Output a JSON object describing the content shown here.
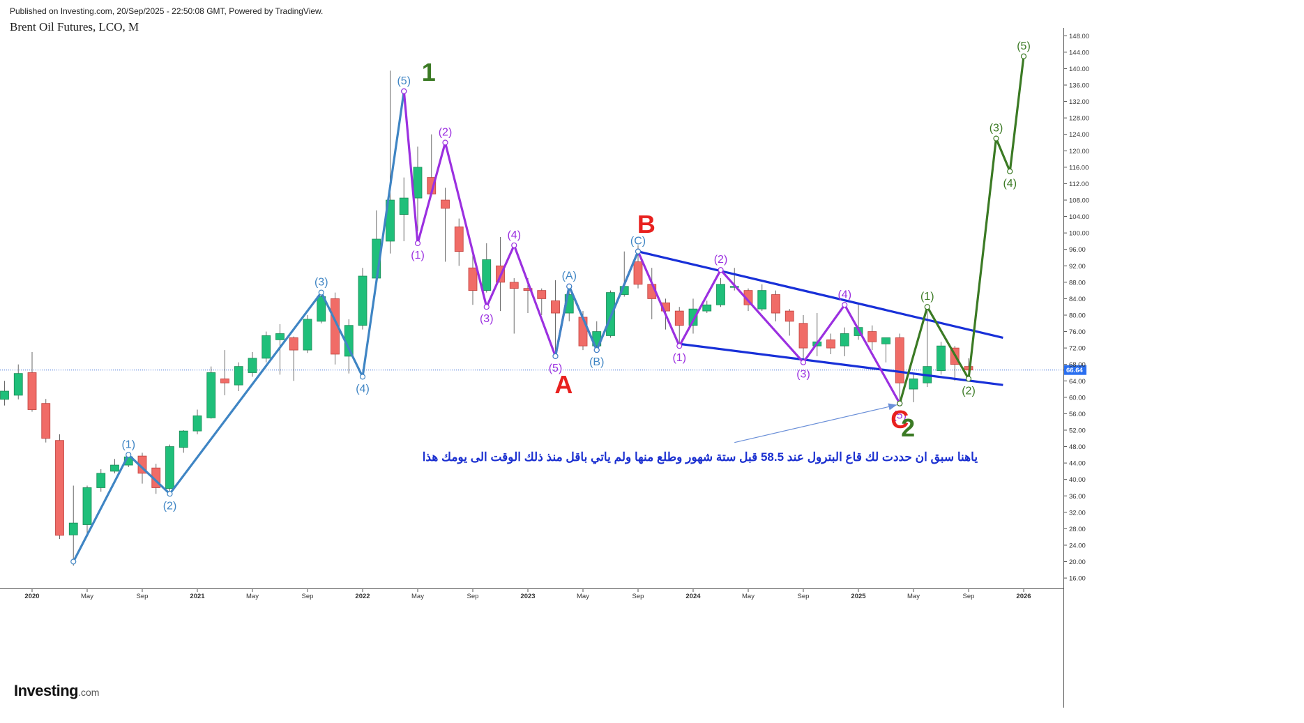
{
  "header": {
    "published": "Published on Investing.com, 20/Sep/2025 - 22:50:08 GMT, Powered by TradingView.",
    "title": "Brent Oil Futures, LCO, M"
  },
  "logo": {
    "brand": "Investing",
    "domain": ".com"
  },
  "colors": {
    "up": "#26a36a",
    "up_fill": "#1fbf7a",
    "down": "#e0504c",
    "down_fill": "#f06c67",
    "wave_blue": "#3f85c4",
    "wave_purple": "#9b30e0",
    "wave_green": "#3b7a24",
    "channel": "#1830d8",
    "label_red": "#e8211f",
    "arrow": "#6a8fd8",
    "note": "#1a2fd0",
    "last_price_bg": "#2a6ff0"
  },
  "chart_data": {
    "type": "candlestick",
    "symbol": "Brent Oil Futures, LCO, M",
    "interval": "monthly",
    "ylim": [
      13,
      149
    ],
    "y_ticks": [
      "148.00",
      "144.00",
      "140.00",
      "136.00",
      "132.00",
      "128.00",
      "124.00",
      "120.00",
      "116.00",
      "112.00",
      "108.00",
      "104.00",
      "100.00",
      "96.00",
      "92.00",
      "88.00",
      "84.00",
      "80.00",
      "76.00",
      "72.00",
      "68.00",
      "64.00",
      "60.00",
      "56.00",
      "52.00",
      "48.00",
      "44.00",
      "40.00",
      "36.00",
      "32.00",
      "28.00",
      "24.00",
      "20.00",
      "16.00"
    ],
    "x_ticks": [
      {
        "label": "2020",
        "month": 0,
        "bold": true
      },
      {
        "label": "May",
        "month": 4
      },
      {
        "label": "Sep",
        "month": 8
      },
      {
        "label": "2021",
        "month": 12,
        "bold": true
      },
      {
        "label": "May",
        "month": 16
      },
      {
        "label": "Sep",
        "month": 20
      },
      {
        "label": "2022",
        "month": 24,
        "bold": true
      },
      {
        "label": "May",
        "month": 28
      },
      {
        "label": "Sep",
        "month": 32
      },
      {
        "label": "2023",
        "month": 36,
        "bold": true
      },
      {
        "label": "May",
        "month": 40
      },
      {
        "label": "Sep",
        "month": 44
      },
      {
        "label": "2024",
        "month": 48,
        "bold": true
      },
      {
        "label": "May",
        "month": 52
      },
      {
        "label": "Sep",
        "month": 56
      },
      {
        "label": "2025",
        "month": 60,
        "bold": true
      },
      {
        "label": "May",
        "month": 64
      },
      {
        "label": "Sep",
        "month": 68
      },
      {
        "label": "2026",
        "month": 72,
        "bold": true
      }
    ],
    "last_price": 66.64,
    "last_price_label": "66.64",
    "candles": [
      {
        "m": -2,
        "o": 59.5,
        "h": 64,
        "l": 58,
        "c": 61.5
      },
      {
        "m": -1,
        "o": 60.5,
        "h": 68,
        "l": 59.5,
        "c": 65.8
      },
      {
        "m": 0,
        "o": 66,
        "h": 71,
        "l": 56.5,
        "c": 57
      },
      {
        "m": 1,
        "o": 58.5,
        "h": 59.6,
        "l": 49,
        "c": 50
      },
      {
        "m": 2,
        "o": 49.5,
        "h": 51,
        "l": 25.5,
        "c": 26.4
      },
      {
        "m": 3,
        "o": 26.5,
        "h": 38.5,
        "l": 19,
        "c": 29.4
      },
      {
        "m": 4,
        "o": 29,
        "h": 38.5,
        "l": 26,
        "c": 38
      },
      {
        "m": 5,
        "o": 38,
        "h": 42.5,
        "l": 37,
        "c": 41.5
      },
      {
        "m": 6,
        "o": 42,
        "h": 45,
        "l": 41.5,
        "c": 43.5
      },
      {
        "m": 7,
        "o": 43.5,
        "h": 46,
        "l": 43,
        "c": 45.5
      },
      {
        "m": 8,
        "o": 45.7,
        "h": 46.5,
        "l": 39,
        "c": 41.5
      },
      {
        "m": 9,
        "o": 42.8,
        "h": 43.8,
        "l": 36.5,
        "c": 38
      },
      {
        "m": 10,
        "o": 37.8,
        "h": 48.5,
        "l": 37,
        "c": 48
      },
      {
        "m": 11,
        "o": 47.8,
        "h": 52,
        "l": 46.5,
        "c": 51.8
      },
      {
        "m": 12,
        "o": 51.8,
        "h": 57,
        "l": 51,
        "c": 55.5
      },
      {
        "m": 13,
        "o": 55,
        "h": 67.5,
        "l": 54.8,
        "c": 66
      },
      {
        "m": 14,
        "o": 64.5,
        "h": 71.5,
        "l": 60.5,
        "c": 63.5
      },
      {
        "m": 15,
        "o": 63,
        "h": 68.5,
        "l": 61.5,
        "c": 67.5
      },
      {
        "m": 16,
        "o": 66,
        "h": 71,
        "l": 65,
        "c": 69.5
      },
      {
        "m": 17,
        "o": 69.5,
        "h": 76,
        "l": 68.5,
        "c": 75
      },
      {
        "m": 18,
        "o": 74,
        "h": 77.8,
        "l": 65.5,
        "c": 75.5
      },
      {
        "m": 19,
        "o": 74.5,
        "h": 74.8,
        "l": 64,
        "c": 71.5
      },
      {
        "m": 20,
        "o": 71.5,
        "h": 80,
        "l": 70.8,
        "c": 79
      },
      {
        "m": 21,
        "o": 78.5,
        "h": 86,
        "l": 78,
        "c": 84.5
      },
      {
        "m": 22,
        "o": 84,
        "h": 85.5,
        "l": 68,
        "c": 70.5
      },
      {
        "m": 23,
        "o": 70,
        "h": 79,
        "l": 65.8,
        "c": 77.5
      },
      {
        "m": 24,
        "o": 77.5,
        "h": 91.5,
        "l": 76.5,
        "c": 89.5
      },
      {
        "m": 25,
        "o": 89,
        "h": 105.5,
        "l": 88,
        "c": 98.5
      },
      {
        "m": 26,
        "o": 98,
        "h": 139.5,
        "l": 95,
        "c": 108
      },
      {
        "m": 27,
        "o": 104.5,
        "h": 113.5,
        "l": 98,
        "c": 108.5
      },
      {
        "m": 28,
        "o": 108.5,
        "h": 121,
        "l": 100.5,
        "c": 116
      },
      {
        "m": 29,
        "o": 113.5,
        "h": 124,
        "l": 109,
        "c": 109.5
      },
      {
        "m": 30,
        "o": 108,
        "h": 111,
        "l": 93,
        "c": 106
      },
      {
        "m": 31,
        "o": 101.5,
        "h": 103.5,
        "l": 92,
        "c": 95.5
      },
      {
        "m": 32,
        "o": 91.5,
        "h": 95.5,
        "l": 82.5,
        "c": 86
      },
      {
        "m": 33,
        "o": 86,
        "h": 97.5,
        "l": 85.5,
        "c": 93.5
      },
      {
        "m": 34,
        "o": 92,
        "h": 99,
        "l": 81,
        "c": 88
      },
      {
        "m": 35,
        "o": 88,
        "h": 89,
        "l": 75.5,
        "c": 86.5
      },
      {
        "m": 36,
        "o": 86.5,
        "h": 89,
        "l": 80.5,
        "c": 86
      },
      {
        "m": 37,
        "o": 86,
        "h": 86.5,
        "l": 80,
        "c": 84
      },
      {
        "m": 38,
        "o": 83.5,
        "h": 88.5,
        "l": 70,
        "c": 80.5
      },
      {
        "m": 39,
        "o": 80.5,
        "h": 87.5,
        "l": 78.5,
        "c": 85
      },
      {
        "m": 40,
        "o": 79.5,
        "h": 81,
        "l": 71.5,
        "c": 72.5
      },
      {
        "m": 41,
        "o": 72.5,
        "h": 78.5,
        "l": 71.5,
        "c": 76
      },
      {
        "m": 42,
        "o": 75,
        "h": 86,
        "l": 74.5,
        "c": 85.5
      },
      {
        "m": 43,
        "o": 85,
        "h": 95.5,
        "l": 84.5,
        "c": 87
      },
      {
        "m": 44,
        "o": 93,
        "h": 97,
        "l": 86.5,
        "c": 87.5
      },
      {
        "m": 45,
        "o": 87.5,
        "h": 91.5,
        "l": 79,
        "c": 84
      },
      {
        "m": 46,
        "o": 83,
        "h": 84,
        "l": 76.5,
        "c": 81
      },
      {
        "m": 47,
        "o": 81,
        "h": 82,
        "l": 73,
        "c": 77.5
      },
      {
        "m": 48,
        "o": 77.5,
        "h": 84,
        "l": 75.5,
        "c": 81.5
      },
      {
        "m": 49,
        "o": 81,
        "h": 83.5,
        "l": 80.5,
        "c": 82.5
      },
      {
        "m": 50,
        "o": 82.5,
        "h": 89,
        "l": 82,
        "c": 87.5
      },
      {
        "m": 51,
        "o": 87,
        "h": 91.5,
        "l": 86,
        "c": 87
      },
      {
        "m": 52,
        "o": 86,
        "h": 86.5,
        "l": 81,
        "c": 82.5
      },
      {
        "m": 53,
        "o": 81.5,
        "h": 87.5,
        "l": 81,
        "c": 86
      },
      {
        "m": 54,
        "o": 85,
        "h": 86,
        "l": 78.5,
        "c": 80.5
      },
      {
        "m": 55,
        "o": 81,
        "h": 81.5,
        "l": 75,
        "c": 78.5
      },
      {
        "m": 56,
        "o": 78,
        "h": 80,
        "l": 68.5,
        "c": 72
      },
      {
        "m": 57,
        "o": 72.5,
        "h": 80.5,
        "l": 70,
        "c": 73.5
      },
      {
        "m": 58,
        "o": 74,
        "h": 75.5,
        "l": 70.5,
        "c": 72
      },
      {
        "m": 59,
        "o": 72.5,
        "h": 77,
        "l": 70,
        "c": 75.5
      },
      {
        "m": 60,
        "o": 75,
        "h": 82.5,
        "l": 74,
        "c": 77
      },
      {
        "m": 61,
        "o": 76,
        "h": 77.5,
        "l": 71.5,
        "c": 73.5
      },
      {
        "m": 62,
        "o": 73,
        "h": 74.5,
        "l": 68.5,
        "c": 74.5
      },
      {
        "m": 63,
        "o": 74.5,
        "h": 75.5,
        "l": 58.5,
        "c": 63.5
      },
      {
        "m": 64,
        "o": 62,
        "h": 66,
        "l": 58.8,
        "c": 64.5
      },
      {
        "m": 65,
        "o": 63.5,
        "h": 81.5,
        "l": 62.5,
        "c": 67.5
      },
      {
        "m": 66,
        "o": 66.5,
        "h": 73.5,
        "l": 65.5,
        "c": 72.5
      },
      {
        "m": 67,
        "o": 72,
        "h": 72.5,
        "l": 64,
        "c": 68
      },
      {
        "m": 68,
        "o": 67.5,
        "h": 69.5,
        "l": 65,
        "c": 66.64
      }
    ],
    "annotations": {
      "waves": [
        {
          "color_key": "wave_blue",
          "points": [
            [
              3,
              20
            ],
            [
              7,
              46
            ],
            [
              10,
              36.5
            ],
            [
              21,
              85.5
            ],
            [
              24,
              65
            ],
            [
              27,
              134.5
            ]
          ]
        },
        {
          "color_key": "wave_purple",
          "points": [
            [
              27,
              134.5
            ],
            [
              28,
              97.5
            ],
            [
              30,
              122
            ],
            [
              33,
              82
            ],
            [
              35,
              97
            ],
            [
              38,
              70
            ],
            [
              39,
              87
            ],
            [
              41,
              71.5
            ],
            [
              44,
              95.5
            ],
            [
              47,
              72.5
            ],
            [
              50,
              91
            ],
            [
              56,
              68.5
            ],
            [
              59,
              82.5
            ],
            [
              63,
              58.5
            ]
          ]
        },
        {
          "color_key": "wave_blue",
          "points": [
            [
              38,
              70
            ],
            [
              39,
              87
            ],
            [
              41,
              71.5
            ],
            [
              44,
              95.5
            ]
          ]
        },
        {
          "color_key": "wave_green",
          "points": [
            [
              63,
              58.5
            ],
            [
              65,
              82
            ],
            [
              68,
              64.5
            ],
            [
              70,
              123
            ],
            [
              71,
              115
            ],
            [
              72,
              143
            ]
          ]
        }
      ],
      "channel_lines": [
        {
          "from": [
            44,
            95.5
          ],
          "to": [
            70.5,
            74.5
          ]
        },
        {
          "from": [
            47,
            73
          ],
          "to": [
            70.5,
            63
          ]
        }
      ],
      "wave_labels": [
        {
          "text": "(1)",
          "m": 7,
          "v": 46,
          "pos": "above",
          "color_key": "wave_blue"
        },
        {
          "text": "(2)",
          "m": 10,
          "v": 36.5,
          "pos": "below",
          "color_key": "wave_blue"
        },
        {
          "text": "(3)",
          "m": 21,
          "v": 85.5,
          "pos": "above",
          "color_key": "wave_blue"
        },
        {
          "text": "(4)",
          "m": 24,
          "v": 65,
          "pos": "below",
          "color_key": "wave_blue"
        },
        {
          "text": "(5)",
          "m": 27,
          "v": 134.5,
          "pos": "above",
          "color_key": "wave_blue"
        },
        {
          "text": "(1)",
          "m": 28,
          "v": 97.5,
          "pos": "below",
          "color_key": "wave_purple"
        },
        {
          "text": "(2)",
          "m": 30,
          "v": 122,
          "pos": "above",
          "color_key": "wave_purple"
        },
        {
          "text": "(3)",
          "m": 33,
          "v": 82,
          "pos": "below",
          "color_key": "wave_purple"
        },
        {
          "text": "(4)",
          "m": 35,
          "v": 97,
          "pos": "above",
          "color_key": "wave_purple"
        },
        {
          "text": "(5)",
          "m": 38,
          "v": 70,
          "pos": "below",
          "color_key": "wave_purple"
        },
        {
          "text": "(A)",
          "m": 39,
          "v": 87,
          "pos": "above",
          "color_key": "wave_blue"
        },
        {
          "text": "(B)",
          "m": 41,
          "v": 71.5,
          "pos": "below",
          "color_key": "wave_blue"
        },
        {
          "text": "(C)",
          "m": 44,
          "v": 95.5,
          "pos": "above",
          "color_key": "wave_blue"
        },
        {
          "text": "(1)",
          "m": 47,
          "v": 72.5,
          "pos": "below",
          "color_key": "wave_purple"
        },
        {
          "text": "(2)",
          "m": 50,
          "v": 91,
          "pos": "above",
          "color_key": "wave_purple"
        },
        {
          "text": "(3)",
          "m": 56,
          "v": 68.5,
          "pos": "below",
          "color_key": "wave_purple"
        },
        {
          "text": "(4)",
          "m": 59,
          "v": 82.5,
          "pos": "above",
          "color_key": "wave_purple"
        },
        {
          "text": "(5)",
          "m": 63,
          "v": 58.5,
          "pos": "below",
          "color_key": "wave_purple"
        },
        {
          "text": "(1)",
          "m": 65,
          "v": 82,
          "pos": "above",
          "color_key": "wave_green"
        },
        {
          "text": "(2)",
          "m": 68,
          "v": 64.5,
          "pos": "below",
          "color_key": "wave_green"
        },
        {
          "text": "(3)",
          "m": 70,
          "v": 123,
          "pos": "above",
          "color_key": "wave_green"
        },
        {
          "text": "(4)",
          "m": 71,
          "v": 115,
          "pos": "below",
          "color_key": "wave_green"
        },
        {
          "text": "(5)",
          "m": 72,
          "v": 143,
          "pos": "above",
          "color_key": "wave_green"
        }
      ],
      "big_labels": [
        {
          "text": "1",
          "m": 28.8,
          "v": 137,
          "color_key": "wave_green",
          "size": "large"
        },
        {
          "text": "A",
          "m": 38.6,
          "v": 61,
          "color_key": "label_red",
          "size": "large"
        },
        {
          "text": "B",
          "m": 44.6,
          "v": 100,
          "color_key": "label_red",
          "size": "large"
        },
        {
          "text": "C",
          "m": 63,
          "v": 52.5,
          "color_key": "label_red",
          "size": "large"
        },
        {
          "text": "2",
          "m": 63.6,
          "v": 50.5,
          "color_key": "wave_green",
          "size": "large"
        }
      ],
      "arrow": {
        "from": [
          51,
          49
        ],
        "to": [
          63,
          58.5
        ]
      },
      "note": {
        "text": "ياهنا سبق ان حددت لك قاع البترول عند 58.5 قبل ستة شهور وطلع منها ولم ياتي باقل منذ ذلك الوقت الى يومك هذا",
        "m": 48.5,
        "v": 44.5
      }
    }
  }
}
